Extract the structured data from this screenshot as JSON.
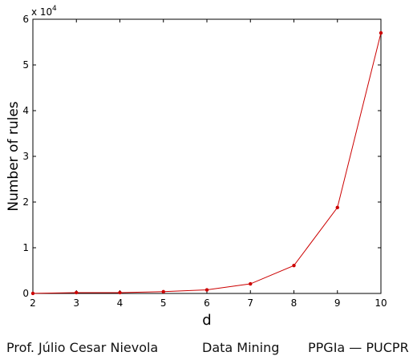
{
  "chart_data": {
    "type": "line",
    "x": [
      2,
      3,
      4,
      5,
      6,
      7,
      8,
      9,
      10
    ],
    "series": [
      {
        "values": [
          12,
          180,
          180,
          390,
          780,
          2100,
          6100,
          18800,
          57000
        ],
        "color": "#cc0000",
        "marker": "dot"
      }
    ],
    "xlabel": "d",
    "ylabel": "Number of rules",
    "xlim": [
      2,
      10
    ],
    "ylim": [
      0,
      60000
    ],
    "xticks": [
      "2",
      "3",
      "4",
      "5",
      "6",
      "7",
      "8",
      "9",
      "10"
    ],
    "yticks": [
      "0",
      "1",
      "2",
      "3",
      "4",
      "5",
      "6"
    ],
    "y_exponent_base": "x 10",
    "y_exponent_power": "4",
    "grid": false
  },
  "footer": {
    "author": "Prof. Júlio Cesar Nievola",
    "course": "Data Mining",
    "program": "PPGIa — PUCPR"
  }
}
